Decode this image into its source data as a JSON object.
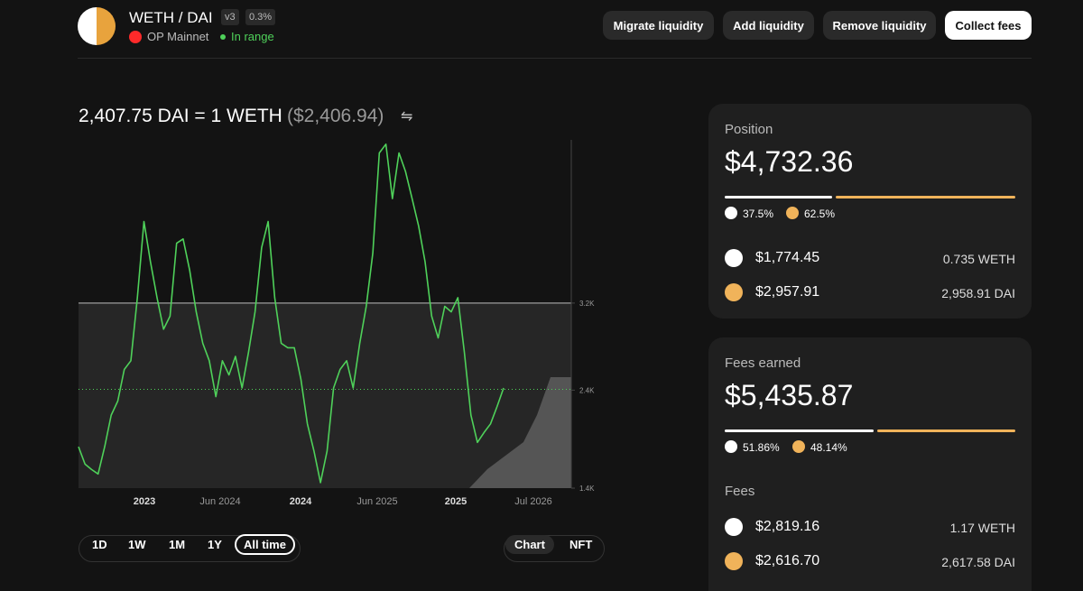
{
  "header": {
    "pair": "WETH / DAI",
    "version": "v3",
    "fee_tier": "0.3%",
    "network": "OP Mainnet",
    "status": "In range"
  },
  "actions": [
    "Migrate liquidity",
    "Add liquidity",
    "Remove liquidity",
    "Collect fees"
  ],
  "price": {
    "text": "2,407.75 DAI = 1 WETH",
    "usd": "($2,406.94)"
  },
  "price_chart": {
    "type": "line",
    "color": "#4fd15a",
    "current_price": 2407.75,
    "values": [
      1880,
      1720,
      1670,
      1630,
      1880,
      2170,
      2300,
      2590,
      2670,
      3250,
      3950,
      3580,
      3250,
      2960,
      3080,
      3750,
      3790,
      3500,
      3120,
      2830,
      2670,
      2340,
      2670,
      2540,
      2710,
      2420,
      2750,
      3120,
      3710,
      3950,
      3250,
      2830,
      2790,
      2790,
      2500,
      2090,
      1840,
      1550,
      1840,
      2420,
      2590,
      2670,
      2420,
      2830,
      3170,
      3660,
      4580,
      4660,
      4160,
      4580,
      4410,
      4160,
      3910,
      3580,
      3080,
      2880,
      3170,
      3120,
      3250,
      2750,
      2170,
      1920,
      2010,
      2090,
      2250,
      2420
    ],
    "ylim": [
      1400,
      4700
    ],
    "yticks": [
      {
        "value": 1400,
        "label": "1.4K"
      },
      {
        "value": 2400,
        "label": "2.4K"
      },
      {
        "value": 3200,
        "label": "3.2K"
      }
    ],
    "x_labels": [
      "2023",
      "Jun 2024",
      "2024",
      "Jun 2025",
      "2025",
      "Jul 2026"
    ]
  },
  "time_ranges": [
    "1D",
    "1W",
    "1M",
    "1Y",
    "All time"
  ],
  "views": [
    "Chart",
    "NFT"
  ],
  "position": {
    "label": "Position",
    "total": "$4,732.36",
    "share": [
      37.5,
      62.5
    ],
    "share_labels": [
      "37.5%",
      "62.5%"
    ],
    "tokens": [
      {
        "usd": "$1,774.45",
        "amount": "0.735 WETH"
      },
      {
        "usd": "$2,957.91",
        "amount": "2,958.91 DAI"
      }
    ]
  },
  "fees_earned": {
    "label": "Fees earned",
    "total": "$5,435.87",
    "share": [
      51.86,
      48.14
    ],
    "share_labels": [
      "51.86%",
      "48.14%"
    ],
    "subtitle": "Fees",
    "tokens": [
      {
        "usd": "$2,819.16",
        "amount": "1.17 WETH"
      },
      {
        "usd": "$2,616.70",
        "amount": "2,617.58 DAI"
      }
    ]
  }
}
